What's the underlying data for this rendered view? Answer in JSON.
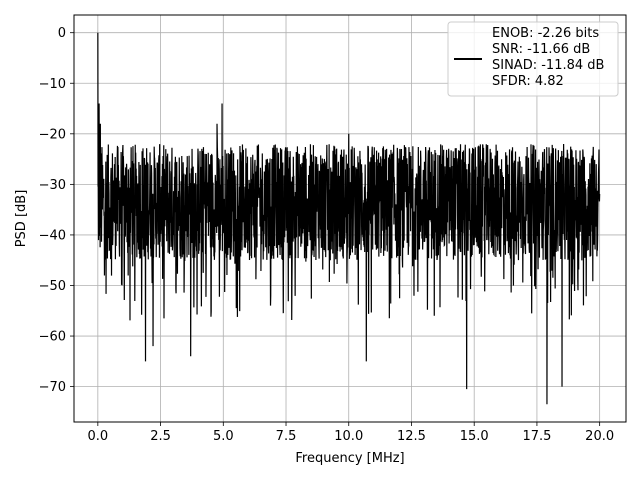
{
  "chart_data": {
    "type": "line",
    "xlabel": "Frequency [MHz]",
    "ylabel": "PSD [dB]",
    "xlim": [
      -0.95,
      21.05
    ],
    "ylim": [
      -77,
      3.5
    ],
    "xticks": [
      0.0,
      2.5,
      5.0,
      7.5,
      10.0,
      12.5,
      15.0,
      17.5,
      20.0
    ],
    "xtick_labels": [
      "0.0",
      "2.5",
      "5.0",
      "7.5",
      "10.0",
      "12.5",
      "15.0",
      "17.5",
      "20.0"
    ],
    "yticks": [
      0,
      -10,
      -20,
      -30,
      -40,
      -50,
      -60,
      -70
    ],
    "ytick_labels": [
      "0",
      "−10",
      "−20",
      "−30",
      "−40",
      "−50",
      "−60",
      "−70"
    ],
    "grid": true,
    "legend": {
      "placement": "top-right",
      "entries": [
        "ENOB: -2.26 bits",
        "SNR: -11.66 dB",
        "SINAD: -11.84 dB",
        "SFDR: 4.82"
      ]
    },
    "series": [
      {
        "color": "#000000",
        "x_range": [
          0.0,
          20.0
        ],
        "envelope_upper_db": -22,
        "envelope_lower_db": -45,
        "peaks": [
          {
            "x": 0.0,
            "y": 0
          },
          {
            "x": 0.05,
            "y": -14
          },
          {
            "x": 0.1,
            "y": -18
          },
          {
            "x": 4.95,
            "y": -14
          },
          {
            "x": 4.75,
            "y": -18
          },
          {
            "x": 10.0,
            "y": -20
          }
        ],
        "troughs": [
          {
            "x": 1.9,
            "y": -65
          },
          {
            "x": 2.2,
            "y": -62
          },
          {
            "x": 3.7,
            "y": -64
          },
          {
            "x": 10.7,
            "y": -65
          },
          {
            "x": 14.7,
            "y": -70.5
          },
          {
            "x": 17.9,
            "y": -73.5
          },
          {
            "x": 18.5,
            "y": -70
          }
        ]
      }
    ]
  }
}
